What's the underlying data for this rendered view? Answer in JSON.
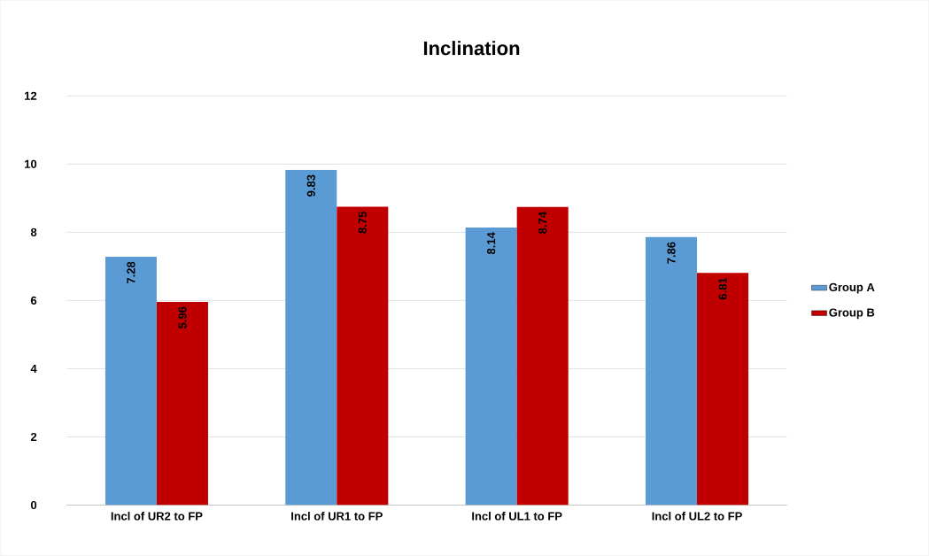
{
  "chart_data": {
    "type": "bar",
    "title": "Inclination",
    "categories": [
      "Incl of UR2 to FP",
      "Incl of UR1 to FP",
      "Incl of UL1 to FP",
      "Incl of UL2 to FP"
    ],
    "series": [
      {
        "name": "Group A",
        "color": "#5b9bd5",
        "values": [
          7.28,
          9.83,
          8.14,
          7.86
        ]
      },
      {
        "name": "Group B",
        "color": "#c00000",
        "values": [
          5.96,
          8.75,
          8.74,
          6.81
        ]
      }
    ],
    "ylim": [
      0,
      12
    ],
    "yticks": [
      0,
      2,
      4,
      6,
      8,
      10,
      12
    ],
    "grid": "y",
    "legend": "right",
    "data_labels": true
  }
}
